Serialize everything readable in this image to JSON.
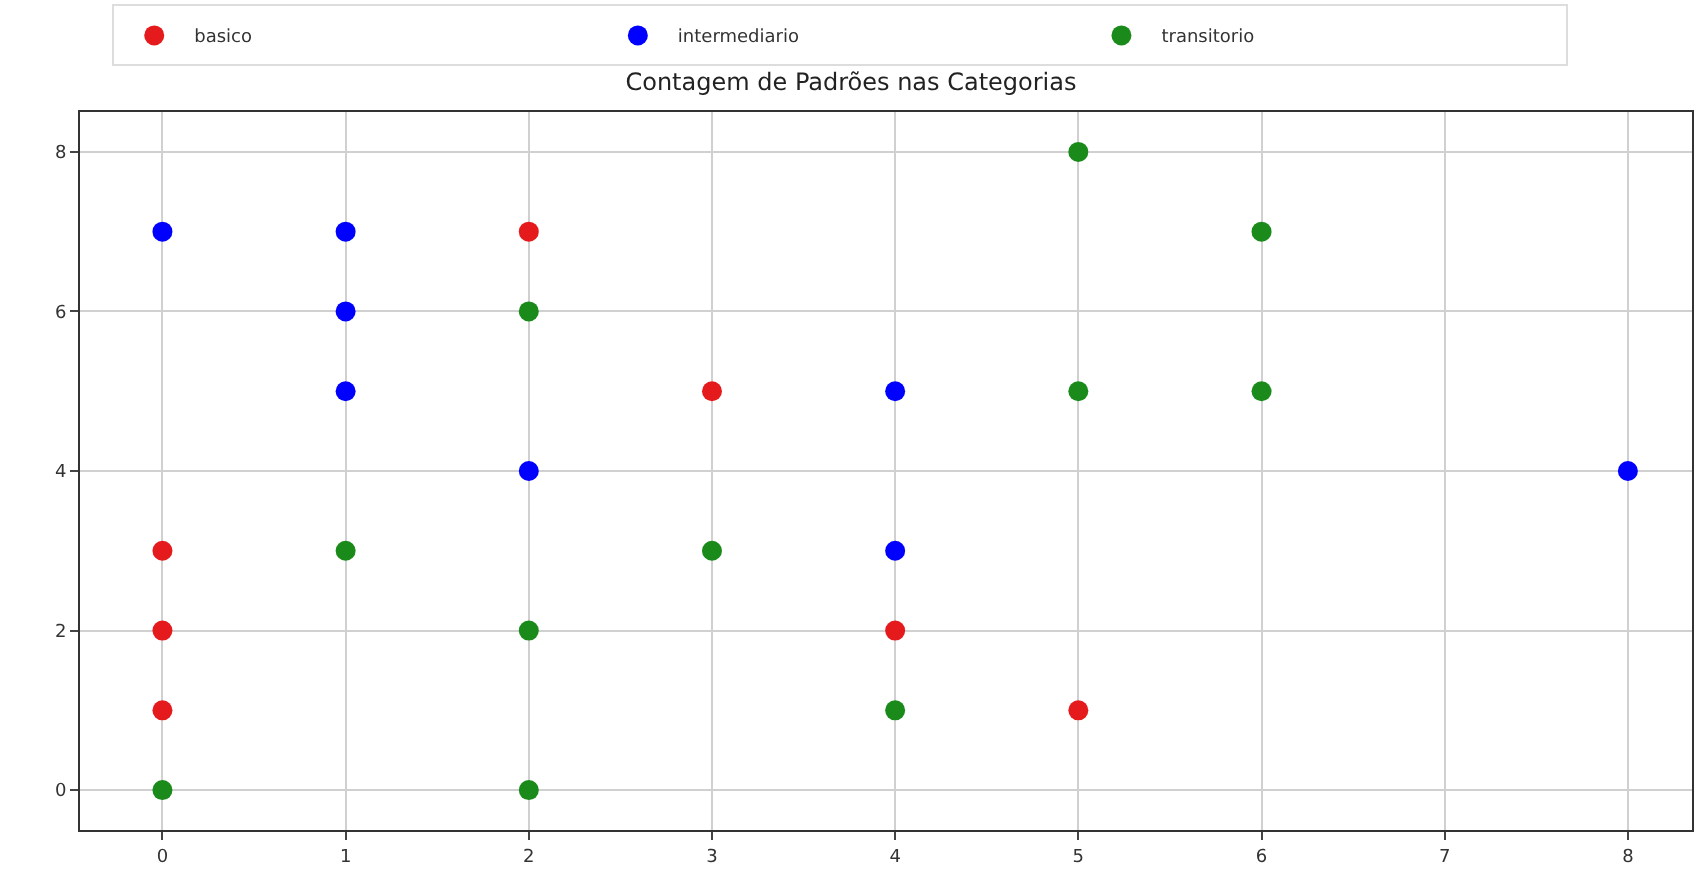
{
  "chart_data": {
    "type": "scatter",
    "title": "Contagem de Padrões nas Categorias",
    "series": [
      {
        "name": "basico",
        "color": "#e41a1c",
        "x": [
          0,
          0,
          0,
          2,
          3,
          4,
          5
        ],
        "values": [
          3,
          2,
          1,
          7,
          5,
          2,
          1
        ]
      },
      {
        "name": "intermediario",
        "color": "#0000ff",
        "x": [
          0,
          1,
          1,
          1,
          2,
          4,
          4,
          8
        ],
        "values": [
          7,
          7,
          6,
          5,
          4,
          5,
          3,
          4
        ]
      },
      {
        "name": "transitorio",
        "color": "#1a8a1a",
        "x": [
          0,
          1,
          2,
          2,
          2,
          3,
          4,
          5,
          5,
          6,
          6
        ],
        "values": [
          0,
          3,
          6,
          2,
          0,
          3,
          1,
          8,
          5,
          7,
          5
        ]
      }
    ],
    "xlim": [
      -0.45,
      8.35
    ],
    "xticks": [
      0,
      1,
      2,
      3,
      4,
      5,
      6,
      7,
      8
    ],
    "ylim": [
      -0.5,
      8.5
    ],
    "yticks": [
      0,
      2,
      4,
      6,
      8
    ],
    "grid": true,
    "legend": "top",
    "marker": "circle"
  }
}
